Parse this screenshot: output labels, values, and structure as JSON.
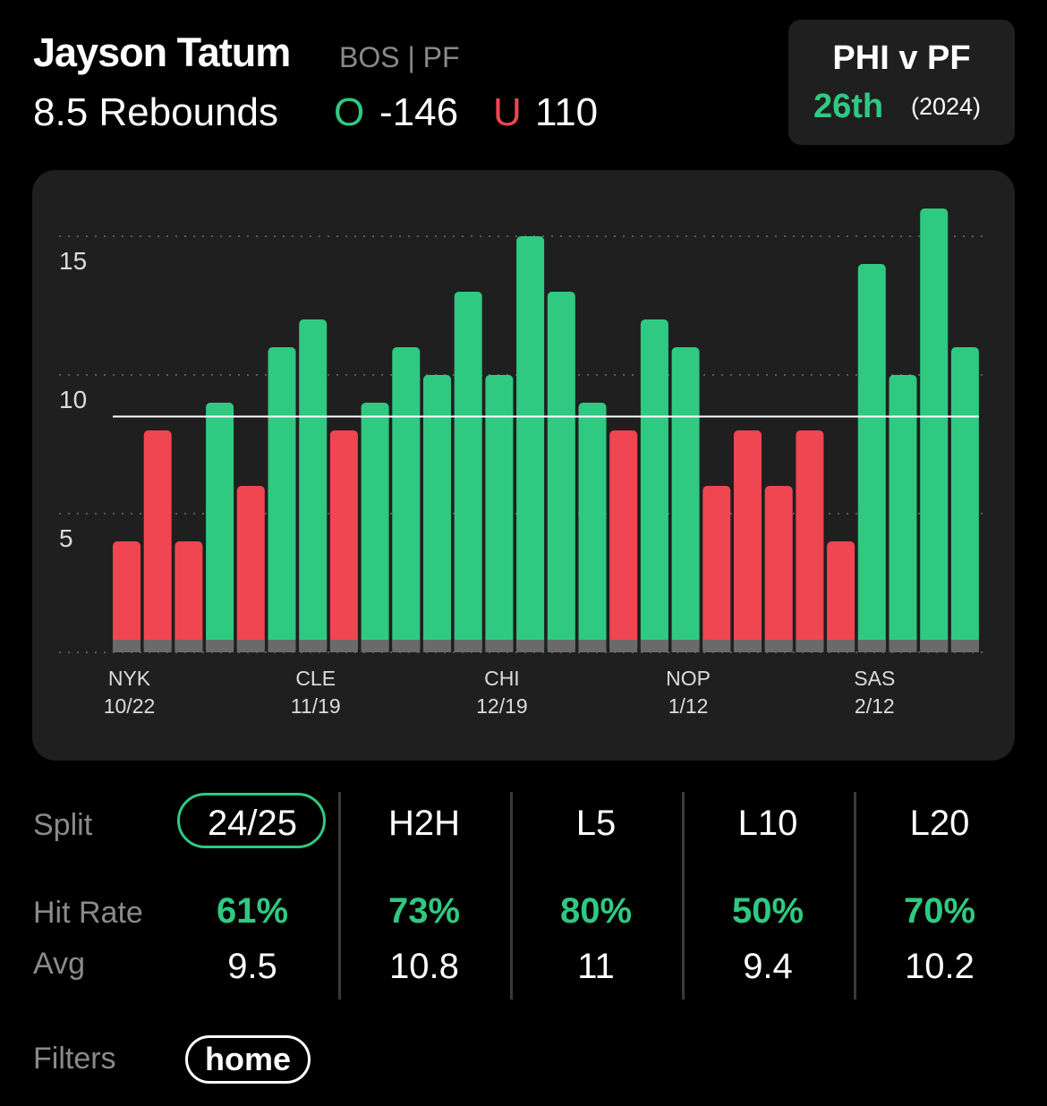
{
  "header": {
    "player_name": "Jayson Tatum",
    "team_position": "BOS | PF",
    "prop_line": "8.5 Rebounds",
    "over_label": "O",
    "over_odds": "-146",
    "under_label": "U",
    "under_odds": "110"
  },
  "matchup": {
    "title": "PHI v PF",
    "rank": "26th",
    "year": "(2024)"
  },
  "colors": {
    "background": "#000000",
    "panel": "#1f1f1f",
    "over": "#2fc982",
    "under": "#ef4652",
    "muted": "#8a8a8a"
  },
  "chart_data": {
    "type": "bar",
    "line": 8.5,
    "ylim": [
      0,
      15.5
    ],
    "yticks": [
      5,
      10,
      15
    ],
    "grid": true,
    "x_labels": [
      {
        "team": "NYK",
        "date": "10/22",
        "index": 0
      },
      {
        "team": "CLE",
        "date": "11/19",
        "index": 6
      },
      {
        "team": "CHI",
        "date": "12/19",
        "index": 12
      },
      {
        "team": "NOP",
        "date": "1/12",
        "index": 18
      },
      {
        "team": "SAS",
        "date": "2/12",
        "index": 24
      }
    ],
    "values": [
      4,
      8,
      4,
      9,
      6,
      11,
      12,
      8,
      9,
      11,
      10,
      13,
      10,
      15,
      13,
      9,
      8,
      12,
      11,
      6,
      8,
      6,
      8,
      4,
      14,
      10,
      16,
      11
    ]
  },
  "splits": {
    "row_labels": {
      "split": "Split",
      "hit_rate": "Hit Rate",
      "avg": "Avg"
    },
    "columns": [
      {
        "name": "24/25",
        "hit_rate": "61%",
        "avg": "9.5",
        "selected": true
      },
      {
        "name": "H2H",
        "hit_rate": "73%",
        "avg": "10.8",
        "selected": false
      },
      {
        "name": "L5",
        "hit_rate": "80%",
        "avg": "11",
        "selected": false
      },
      {
        "name": "L10",
        "hit_rate": "50%",
        "avg": "9.4",
        "selected": false
      },
      {
        "name": "L20",
        "hit_rate": "70%",
        "avg": "10.2",
        "selected": false
      }
    ]
  },
  "filters": {
    "label": "Filters",
    "chips": [
      "home"
    ]
  }
}
